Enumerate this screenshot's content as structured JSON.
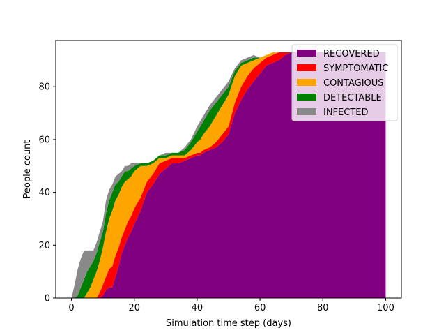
{
  "chart_data": {
    "type": "area",
    "stacked": true,
    "title": "",
    "xlabel": "Simulation time step (days)",
    "ylabel": "People count",
    "xlim": [
      -5,
      105
    ],
    "ylim": [
      0,
      97.5
    ],
    "x_ticks": [
      0,
      20,
      40,
      60,
      80,
      100
    ],
    "y_ticks": [
      0,
      20,
      40,
      60,
      80
    ],
    "grid": false,
    "legend_position": "top-right",
    "x": [
      0,
      1,
      2,
      3,
      4,
      5,
      6,
      7,
      8,
      9,
      10,
      11,
      12,
      13,
      14,
      15,
      16,
      17,
      18,
      19,
      20,
      22,
      24,
      26,
      28,
      30,
      32,
      34,
      36,
      38,
      40,
      41,
      42,
      44,
      46,
      48,
      50,
      52,
      54,
      56,
      58,
      60,
      62,
      64,
      66,
      68,
      70,
      75,
      80,
      90,
      100
    ],
    "series": [
      {
        "name": "RECOVERED",
        "color": "#800080",
        "values": [
          0,
          0,
          0,
          0,
          0,
          0,
          0,
          0,
          0,
          0,
          1,
          3,
          4,
          4,
          8,
          12,
          17,
          20,
          23,
          25,
          28,
          33,
          40,
          43,
          47,
          49,
          51,
          51,
          52,
          53,
          54,
          54,
          55,
          56,
          57,
          59,
          62,
          70,
          75,
          79,
          82,
          85,
          88,
          89,
          90,
          92,
          93,
          93,
          93,
          93,
          93
        ]
      },
      {
        "name": "SYMPTOMATIC",
        "color": "#ff0000",
        "values": [
          0,
          0,
          0,
          0,
          0,
          0,
          0,
          0,
          0,
          2,
          4,
          5,
          7,
          8,
          8,
          7,
          6,
          6,
          6,
          6,
          6,
          5,
          4,
          4,
          4,
          3,
          2,
          2,
          1,
          1,
          1,
          1,
          1,
          1,
          2,
          3,
          3,
          4,
          5,
          5,
          5,
          4,
          3,
          3,
          3,
          1,
          0,
          0,
          0,
          0,
          0
        ]
      },
      {
        "name": "CONTAGIOUS",
        "color": "#ffa500",
        "values": [
          0,
          0,
          0,
          0,
          0,
          2,
          4,
          7,
          10,
          12,
          14,
          17,
          19,
          21,
          21,
          20,
          19,
          18,
          16,
          15,
          14,
          12,
          6,
          4,
          2,
          1,
          1,
          1,
          1,
          2,
          4,
          5,
          6,
          8,
          10,
          11,
          12,
          10,
          8,
          5,
          3,
          2,
          1,
          1,
          0,
          0,
          0,
          0,
          0,
          0,
          0
        ]
      },
      {
        "name": "DETECTABLE",
        "color": "#008000",
        "values": [
          0,
          0,
          1,
          4,
          7,
          8,
          8,
          7,
          7,
          7,
          6,
          7,
          7,
          7,
          6,
          5,
          4,
          4,
          3,
          3,
          2,
          1,
          1,
          1,
          1,
          1,
          1,
          1,
          2,
          3,
          4,
          5,
          5,
          6,
          5,
          4,
          3,
          2,
          1,
          1,
          1,
          0,
          0,
          0,
          0,
          0,
          0,
          0,
          0,
          0,
          0
        ]
      },
      {
        "name": "INFECTED",
        "color": "#898989",
        "values": [
          0,
          5,
          10,
          11,
          11,
          8,
          6,
          4,
          4,
          4,
          4,
          5,
          4,
          3,
          3,
          3,
          2,
          2,
          2,
          2,
          1,
          0,
          0,
          0,
          0,
          1,
          0,
          0,
          1,
          1,
          2,
          2,
          2,
          2,
          2,
          2,
          2,
          1,
          1,
          1,
          1,
          0,
          0,
          0,
          0,
          0,
          0,
          0,
          0,
          0,
          0
        ]
      }
    ]
  }
}
